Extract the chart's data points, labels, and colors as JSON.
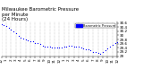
{
  "title": "Milwaukee Barometric Pressure\nper Minute\n(24 Hours)",
  "background_color": "#ffffff",
  "dot_color": "#0000ff",
  "legend_color": "#0000ff",
  "grid_color": "#888888",
  "ylim": [
    29.0,
    30.65
  ],
  "xlim": [
    0,
    1440
  ],
  "yticks": [
    29.0,
    29.2,
    29.4,
    29.6,
    29.8,
    30.0,
    30.2,
    30.4,
    30.6
  ],
  "ytick_labels": [
    "29",
    "29.2",
    "29.4",
    "29.6",
    "29.8",
    "30",
    "30.2",
    "30.4",
    "30.6"
  ],
  "xtick_positions": [
    0,
    60,
    120,
    180,
    240,
    300,
    360,
    420,
    480,
    540,
    600,
    660,
    720,
    780,
    840,
    900,
    960,
    1020,
    1080,
    1140,
    1200,
    1260,
    1320,
    1380,
    1440
  ],
  "xtick_labels": [
    "12",
    "1",
    "2",
    "3",
    "4",
    "5",
    "6",
    "7",
    "8",
    "9",
    "10",
    "11",
    "12",
    "1",
    "2",
    "3",
    "4",
    "5",
    "6",
    "7",
    "8",
    "9",
    "10",
    "11",
    "12"
  ],
  "data_x": [
    0,
    30,
    60,
    90,
    120,
    150,
    180,
    210,
    240,
    270,
    300,
    330,
    360,
    390,
    420,
    450,
    480,
    510,
    540,
    570,
    600,
    630,
    660,
    690,
    720,
    750,
    780,
    810,
    840,
    870,
    900,
    930,
    960,
    990,
    1020,
    1050,
    1080,
    1110,
    1140,
    1170,
    1200,
    1230,
    1260,
    1290,
    1320,
    1350,
    1380,
    1410,
    1440
  ],
  "data_y": [
    30.55,
    30.5,
    30.44,
    30.38,
    30.28,
    30.18,
    30.1,
    29.98,
    29.88,
    29.85,
    29.8,
    29.76,
    29.72,
    29.7,
    29.65,
    29.62,
    29.58,
    29.52,
    29.48,
    29.44,
    29.44,
    29.43,
    29.42,
    29.4,
    29.4,
    29.42,
    29.44,
    29.46,
    29.5,
    29.5,
    29.48,
    29.46,
    29.44,
    29.4,
    29.38,
    29.35,
    29.32,
    29.28,
    29.22,
    29.18,
    29.15,
    29.12,
    29.2,
    29.28,
    29.38,
    29.48,
    29.56,
    29.62,
    29.68
  ],
  "legend_label": "Barometric Pressure",
  "title_fontsize": 4.0,
  "tick_fontsize": 3.0,
  "marker_size": 0.8,
  "fig_width": 1.6,
  "fig_height": 0.87,
  "dpi": 100
}
